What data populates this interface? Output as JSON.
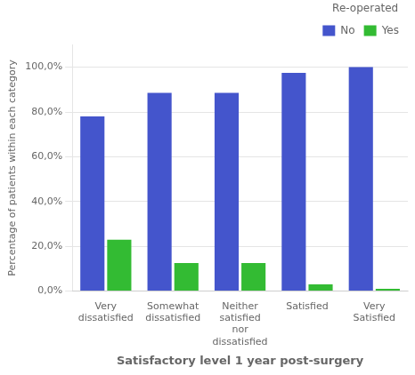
{
  "chart_data": {
    "type": "bar",
    "xlabel": "Satisfactory level 1 year post-surgery",
    "ylabel": "Percentage of patients within each category",
    "categories": [
      "Very\ndissatisfied",
      "Somewhat\ndissatisfied",
      "Neither\nsatisfied\nnor\ndissatisfied",
      "Satisfied",
      "Very\nSatisfied"
    ],
    "series": [
      {
        "name": "No",
        "color": "#4455CC",
        "values": [
          78.0,
          88.5,
          88.5,
          97.5,
          100.0
        ]
      },
      {
        "name": "Yes",
        "color": "#33BB33",
        "values": [
          23.0,
          12.5,
          12.5,
          3.0,
          1.0
        ]
      }
    ],
    "ylim": [
      0,
      110
    ],
    "yticks": [
      {
        "value": 0,
        "label": "0,0%"
      },
      {
        "value": 20,
        "label": "20,0%"
      },
      {
        "value": 40,
        "label": "40,0%"
      },
      {
        "value": 60,
        "label": "60,0%"
      },
      {
        "value": 80,
        "label": "80,0%"
      },
      {
        "value": 100,
        "label": "100,0%"
      }
    ],
    "grid": true,
    "legend": "upper right",
    "legend_title": "Re-operated"
  }
}
